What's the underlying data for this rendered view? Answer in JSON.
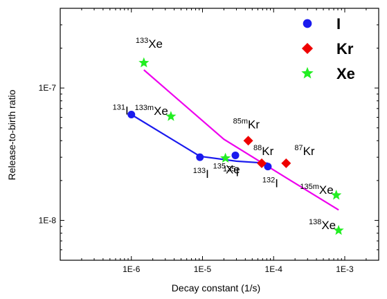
{
  "chart_data": {
    "type": "scatter",
    "xlabel": "Decay constant (1/s)",
    "ylabel": "Release-to-birth ratio",
    "x_scale": "log",
    "y_scale": "log",
    "xlim": [
      1e-07,
      0.003
    ],
    "ylim": [
      5e-09,
      4e-07
    ],
    "x_ticks": [
      {
        "value": 1e-06,
        "label": "1E-6"
      },
      {
        "value": 1e-05,
        "label": "1E-5"
      },
      {
        "value": 0.0001,
        "label": "1E-4"
      },
      {
        "value": 0.001,
        "label": "1E-3"
      }
    ],
    "y_ticks": [
      {
        "value": 1e-08,
        "label": "1E-8"
      },
      {
        "value": 1e-07,
        "label": "1E-7"
      }
    ],
    "grid": false,
    "legend_position": "top-right",
    "series": [
      {
        "name": "I",
        "color": "#1a1aee",
        "marker": "circle",
        "points": [
          {
            "x": 1e-06,
            "y": 6.3e-08,
            "mass": "131",
            "el": "I"
          },
          {
            "x": 9.2e-06,
            "y": 3e-08,
            "mass": "133",
            "el": "I"
          },
          {
            "x": 2.9e-05,
            "y": 3.1e-08,
            "mass": "135",
            "el": "I"
          },
          {
            "x": 8.3e-05,
            "y": 2.55e-08,
            "mass": "132",
            "el": "I"
          }
        ],
        "fit": [
          [
            1e-06,
            6.3e-08
          ],
          [
            9.2e-06,
            3.05e-08
          ],
          [
            3e-05,
            2.8e-08
          ],
          [
            8.3e-05,
            2.7e-08
          ]
        ]
      },
      {
        "name": "Kr",
        "color": "#ee0000",
        "marker": "diamond",
        "points": [
          {
            "x": 4.4e-05,
            "y": 4e-08,
            "mass": "85m",
            "el": "Kr"
          },
          {
            "x": 6.8e-05,
            "y": 2.7e-08,
            "mass": "88",
            "el": "Kr"
          },
          {
            "x": 0.00015,
            "y": 2.7e-08,
            "mass": "87",
            "el": "Kr"
          }
        ]
      },
      {
        "name": "Xe",
        "color": "#22ee22",
        "marker": "star",
        "points": [
          {
            "x": 1.5e-06,
            "y": 1.55e-07,
            "mass": "133",
            "el": "Xe"
          },
          {
            "x": 3.6e-06,
            "y": 6.1e-08,
            "mass": "133m",
            "el": "Xe"
          },
          {
            "x": 2.1e-05,
            "y": 2.95e-08,
            "mass": "135",
            "el": "Xe"
          },
          {
            "x": 0.00076,
            "y": 1.55e-08,
            "mass": "135m",
            "el": "Xe"
          },
          {
            "x": 0.00082,
            "y": 8.4e-09,
            "mass": "138",
            "el": "Xe"
          }
        ],
        "fit_color": "#ee00ee",
        "fit": [
          [
            1.5e-06,
            1.37e-07
          ],
          [
            2e-05,
            4.1e-08
          ],
          [
            0.00015,
            2.1e-08
          ],
          [
            0.00082,
            1.2e-08
          ]
        ]
      }
    ]
  }
}
